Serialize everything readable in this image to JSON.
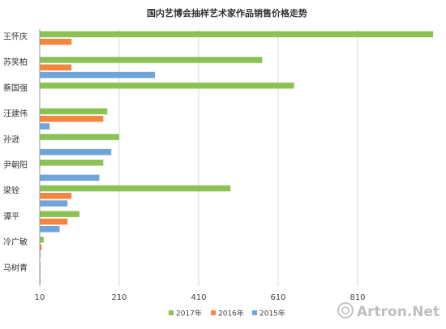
{
  "chart_data": {
    "type": "bar",
    "orientation": "horizontal",
    "title": "国内艺博会抽样艺术家作品销售价格走势",
    "xlabel": "",
    "ylabel": "",
    "categories": [
      "王怀庆",
      "苏笑柏",
      "蔡国强",
      "汪建伟",
      "孙逊",
      "尹朝阳",
      "梁铨",
      "谭平",
      "冷广敏",
      "马树青"
    ],
    "series": [
      {
        "name": "2017年",
        "color": "#8cc153",
        "values": [
          1000,
          570,
          650,
          180,
          210,
          170,
          490,
          110,
          20,
          8
        ]
      },
      {
        "name": "2016年",
        "color": "#f4863f",
        "values": [
          90,
          90,
          null,
          170,
          null,
          null,
          90,
          80,
          15,
          5
        ]
      },
      {
        "name": "2015年",
        "color": "#6ea6db",
        "values": [
          null,
          300,
          null,
          35,
          190,
          160,
          80,
          60,
          8,
          3
        ]
      }
    ],
    "xlim": [
      10,
      1010
    ],
    "xticks": [
      10,
      210,
      410,
      610,
      810
    ],
    "grid": true,
    "legend_position": "bottom"
  },
  "watermark": {
    "text": "Artron.Net"
  }
}
